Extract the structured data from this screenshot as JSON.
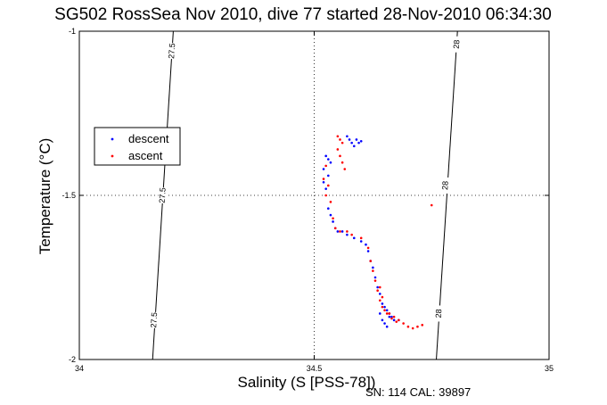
{
  "chart_data": {
    "type": "scatter",
    "title": "SG502 RossSea Nov 2010, dive 77 started 28-Nov-2010 06:34:30",
    "xlabel": "Salinity (S [PSS-78])",
    "ylabel": "Temperature (°C)",
    "xlim": [
      34,
      35
    ],
    "ylim": [
      -2,
      -1
    ],
    "xticks": [
      "34",
      "34.5",
      "35"
    ],
    "yticks": [
      "-1",
      "-1.5",
      "-2"
    ],
    "grid": "dotted at 34.5 and -1.5",
    "legend_placement": "left",
    "footer": "SN: 114  CAL: 39897",
    "colors": {
      "descent": "#0000ff",
      "ascent": "#ff0000"
    },
    "contours": [
      {
        "label": "27.5",
        "points": [
          [
            34.2,
            -1
          ],
          [
            34.156,
            -2
          ]
        ],
        "label_positions": [
          [
            34.198,
            -1.06
          ],
          [
            34.178,
            -1.5
          ],
          [
            34.16,
            -1.88
          ]
        ]
      },
      {
        "label": "28",
        "points": [
          [
            34.805,
            -1
          ],
          [
            34.76,
            -2
          ]
        ],
        "label_positions": [
          [
            34.804,
            -1.04
          ],
          [
            34.78,
            -1.47
          ],
          [
            34.766,
            -1.86
          ]
        ]
      }
    ],
    "series": [
      {
        "name": "descent",
        "points": [
          [
            34.57,
            -1.32
          ],
          [
            34.575,
            -1.33
          ],
          [
            34.58,
            -1.34
          ],
          [
            34.59,
            -1.33
          ],
          [
            34.595,
            -1.34
          ],
          [
            34.6,
            -1.335
          ],
          [
            34.585,
            -1.35
          ],
          [
            34.525,
            -1.38
          ],
          [
            34.53,
            -1.39
          ],
          [
            34.535,
            -1.4
          ],
          [
            34.52,
            -1.42
          ],
          [
            34.53,
            -1.44
          ],
          [
            34.52,
            -1.46
          ],
          [
            34.525,
            -1.48
          ],
          [
            34.53,
            -1.54
          ],
          [
            34.535,
            -1.56
          ],
          [
            34.54,
            -1.58
          ],
          [
            34.545,
            -1.6
          ],
          [
            34.55,
            -1.61
          ],
          [
            34.56,
            -1.61
          ],
          [
            34.57,
            -1.62
          ],
          [
            34.585,
            -1.63
          ],
          [
            34.6,
            -1.64
          ],
          [
            34.61,
            -1.65
          ],
          [
            34.615,
            -1.67
          ],
          [
            34.62,
            -1.7
          ],
          [
            34.625,
            -1.72
          ],
          [
            34.63,
            -1.75
          ],
          [
            34.635,
            -1.78
          ],
          [
            34.64,
            -1.8
          ],
          [
            34.645,
            -1.83
          ],
          [
            34.65,
            -1.84
          ],
          [
            34.655,
            -1.85
          ],
          [
            34.66,
            -1.86
          ],
          [
            34.665,
            -1.87
          ],
          [
            34.64,
            -1.86
          ],
          [
            34.645,
            -1.88
          ],
          [
            34.65,
            -1.89
          ],
          [
            34.655,
            -1.9
          ],
          [
            34.66,
            -1.87
          ],
          [
            34.67,
            -1.88
          ],
          [
            34.68,
            -1.88
          ]
        ]
      },
      {
        "name": "ascent",
        "points": [
          [
            34.55,
            -1.32
          ],
          [
            34.555,
            -1.33
          ],
          [
            34.56,
            -1.34
          ],
          [
            34.55,
            -1.36
          ],
          [
            34.555,
            -1.38
          ],
          [
            34.56,
            -1.4
          ],
          [
            34.565,
            -1.42
          ],
          [
            34.525,
            -1.41
          ],
          [
            34.52,
            -1.45
          ],
          [
            34.53,
            -1.47
          ],
          [
            34.525,
            -1.5
          ],
          [
            34.535,
            -1.52
          ],
          [
            34.54,
            -1.57
          ],
          [
            34.545,
            -1.6
          ],
          [
            34.555,
            -1.61
          ],
          [
            34.57,
            -1.61
          ],
          [
            34.58,
            -1.62
          ],
          [
            34.6,
            -1.63
          ],
          [
            34.615,
            -1.66
          ],
          [
            34.62,
            -1.7
          ],
          [
            34.625,
            -1.73
          ],
          [
            34.63,
            -1.76
          ],
          [
            34.635,
            -1.79
          ],
          [
            34.64,
            -1.82
          ],
          [
            34.645,
            -1.84
          ],
          [
            34.65,
            -1.85
          ],
          [
            34.66,
            -1.86
          ],
          [
            34.67,
            -1.87
          ],
          [
            34.68,
            -1.88
          ],
          [
            34.69,
            -1.89
          ],
          [
            34.7,
            -1.9
          ],
          [
            34.71,
            -1.905
          ],
          [
            34.72,
            -1.9
          ],
          [
            34.73,
            -1.895
          ],
          [
            34.75,
            -1.53
          ],
          [
            34.64,
            -1.78
          ],
          [
            34.645,
            -1.81
          ],
          [
            34.655,
            -1.86
          ],
          [
            34.665,
            -1.875
          ],
          [
            34.675,
            -1.885
          ]
        ]
      }
    ]
  }
}
